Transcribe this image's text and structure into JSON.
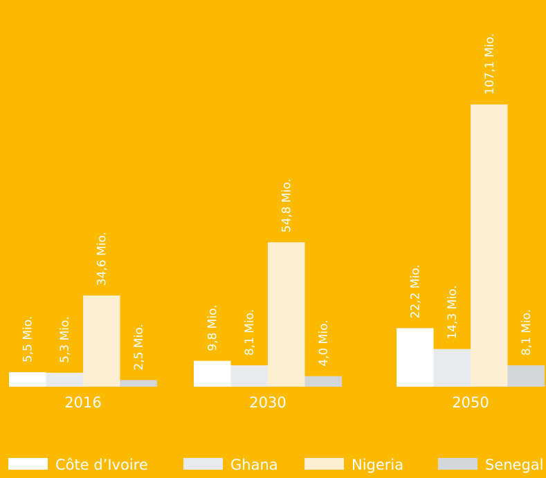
{
  "chart_data": {
    "type": "bar",
    "categories": [
      "2016",
      "2030",
      "2050"
    ],
    "series": [
      {
        "name": "Côte d’Ivoire",
        "color": "#ffffff",
        "values": [
          5.5,
          9.8,
          22.2
        ],
        "labels": [
          "5,5 Mio.",
          "9,8 Mio.",
          "22,2 Mio."
        ]
      },
      {
        "name": "Ghana",
        "color": "#e8eaed",
        "values": [
          5.3,
          8.1,
          14.3
        ],
        "labels": [
          "5,3 Mio.",
          "8,1 Mio.",
          "14,3 Mio."
        ]
      },
      {
        "name": "Nigeria",
        "color": "#fdeed2",
        "values": [
          34.6,
          54.8,
          107.1
        ],
        "labels": [
          "34,6 Mio.",
          "54,8 Mio.",
          "107,1 Mio."
        ]
      },
      {
        "name": "Senegal",
        "color": "#d2d6d9",
        "values": [
          2.5,
          4.0,
          8.1
        ],
        "labels": [
          "2,5 Mio.",
          "4,0 Mio.",
          "8,1 Mio."
        ]
      }
    ],
    "title": "",
    "xlabel": "",
    "ylabel": "",
    "ylim": [
      0,
      107.1
    ],
    "grid": false,
    "legend_position": "bottom",
    "background_color": "#fbb900",
    "text_color": "#ffffff"
  }
}
